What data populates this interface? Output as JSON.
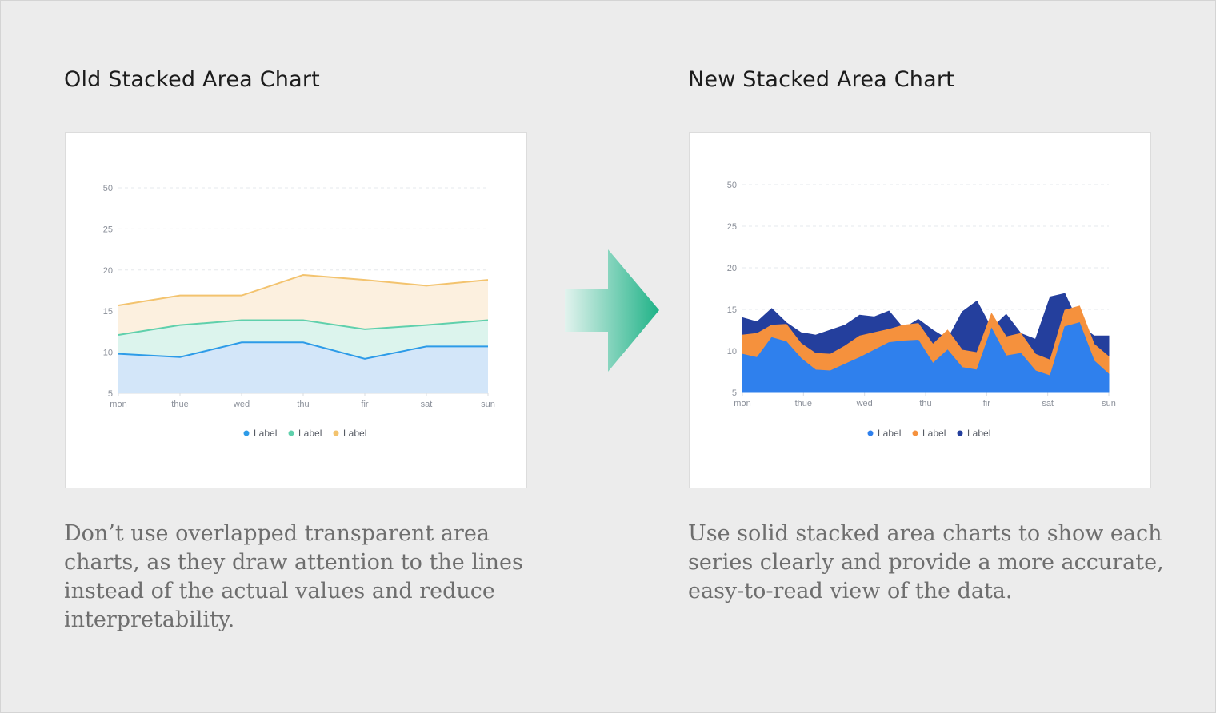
{
  "old": {
    "title": "Old Stacked Area Chart",
    "caption": "Don’t use overlapped transparent area charts, as they draw attention to the lines instead of the actual values and reduce interpretability."
  },
  "new": {
    "title": "New Stacked Area Chart",
    "caption": "Use solid stacked area charts to show each series clearly and provide a more accurate, easy-to-read view of the data."
  },
  "colors": {
    "background": "#ececec",
    "arrow_from": "#e2f3ee",
    "arrow_to": "#1fb287"
  },
  "chart_data": [
    {
      "type": "area",
      "title": "",
      "xlabel": "",
      "ylabel": "",
      "categories": [
        "mon",
        "thue",
        "wed",
        "thu",
        "fir",
        "sat",
        "sun"
      ],
      "y_ticks": [
        "5",
        "10",
        "15",
        "20",
        "25",
        "50"
      ],
      "grid": true,
      "legend_position": "bottom-center",
      "style": "overlapped-transparent",
      "series": [
        {
          "name": "Label",
          "color": "#2d9be8",
          "fill": "#d3e6f9",
          "values": [
            9.8,
            9.4,
            11.2,
            11.2,
            9.2,
            10.7,
            10.7
          ]
        },
        {
          "name": "Label",
          "color": "#5fd0ac",
          "fill": "#dcf4ed",
          "values": [
            12.1,
            13.3,
            13.9,
            13.9,
            12.8,
            13.3,
            13.9
          ]
        },
        {
          "name": "Label",
          "color": "#f3c36e",
          "fill": "#fcf0df",
          "values": [
            15.7,
            16.9,
            16.9,
            19.4,
            18.8,
            18.1,
            18.8
          ]
        }
      ]
    },
    {
      "type": "area",
      "title": "",
      "xlabel": "",
      "ylabel": "",
      "x_labels": [
        "mon",
        "thue",
        "wed",
        "thu",
        "fir",
        "sat",
        "sun"
      ],
      "y_ticks": [
        "5",
        "10",
        "15",
        "20",
        "25",
        "50"
      ],
      "grid": true,
      "legend_position": "bottom-center",
      "style": "solid-stacked",
      "series": [
        {
          "name": "Label",
          "color": "#2f80ed",
          "values": [
            9.6,
            9.2,
            11.6,
            11.1,
            9.1,
            7.7,
            7.6,
            8.4,
            9.2,
            10.1,
            11.0,
            11.2,
            11.3,
            8.5,
            10.1,
            8.0,
            7.7,
            12.7,
            9.4,
            9.7,
            7.6,
            7.0,
            12.9,
            13.4,
            8.8,
            7.2
          ]
        },
        {
          "name": "Label",
          "color": "#f5913d",
          "values": [
            11.9,
            12.1,
            13.1,
            13.2,
            10.9,
            9.7,
            9.6,
            10.6,
            11.8,
            12.2,
            12.6,
            13.1,
            13.3,
            10.8,
            12.5,
            10.1,
            9.8,
            14.5,
            11.7,
            12.1,
            9.6,
            8.9,
            14.9,
            15.4,
            10.8,
            9.3
          ]
        },
        {
          "name": "Label",
          "color": "#243f9d",
          "values": [
            14.0,
            13.5,
            15.1,
            13.4,
            12.2,
            11.9,
            12.5,
            13.1,
            14.3,
            14.1,
            14.8,
            12.7,
            13.8,
            12.5,
            11.4,
            14.7,
            16.0,
            12.7,
            14.4,
            12.1,
            11.4,
            16.5,
            16.9,
            13.1,
            11.8,
            11.8
          ]
        }
      ]
    }
  ]
}
